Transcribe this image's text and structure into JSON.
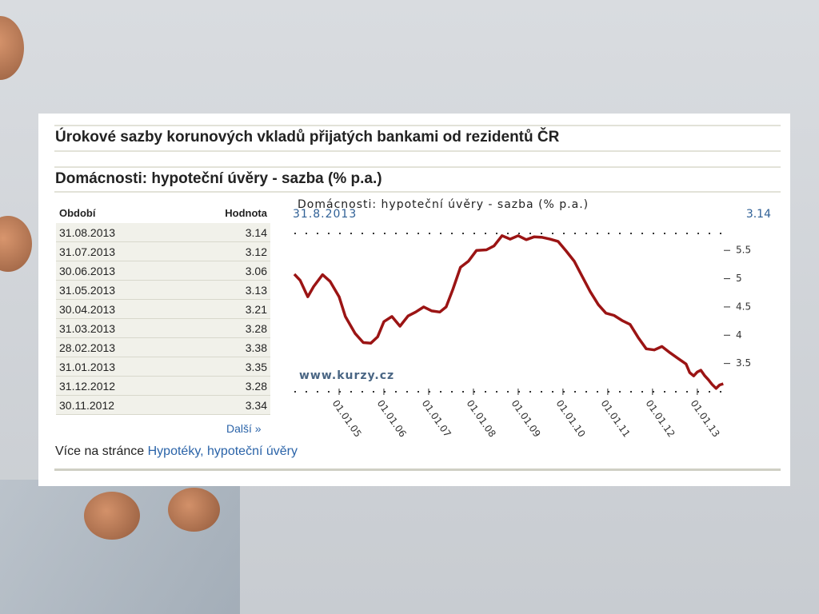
{
  "header": {
    "title": "Úrokové sazby korunových vkladů přijatých bankami od rezidentů ČR",
    "subtitle": "Domácnosti: hypoteční úvěry - sazba (% p.a.)"
  },
  "table": {
    "columns": [
      "Období",
      "Hodnota"
    ],
    "rows": [
      [
        "31.08.2013",
        3.14
      ],
      [
        "31.07.2013",
        3.12
      ],
      [
        "30.06.2013",
        3.06
      ],
      [
        "31.05.2013",
        3.13
      ],
      [
        "30.04.2013",
        3.21
      ],
      [
        "31.03.2013",
        3.28
      ],
      [
        "28.02.2013",
        3.38
      ],
      [
        "31.01.2013",
        3.35
      ],
      [
        "31.12.2012",
        3.28
      ],
      [
        "30.11.2012",
        3.34
      ]
    ]
  },
  "more_link": "Další »",
  "footer": {
    "text": "Více na stránce",
    "link": "Hypotéky, hypoteční úvěry"
  },
  "chart_data": {
    "type": "line",
    "title": "Domácnosti: hypoteční úvěry - sazba (% p.a.)",
    "annotations": [
      "31.8.2013",
      "3.14",
      "www.kurzy.cz"
    ],
    "x": [
      2004.0,
      2004.13,
      2004.3,
      2004.43,
      2004.63,
      2004.8,
      2005.0,
      2005.14,
      2005.36,
      2005.54,
      2005.71,
      2005.86,
      2006.0,
      2006.18,
      2006.36,
      2006.54,
      2006.71,
      2006.89,
      2007.07,
      2007.25,
      2007.39,
      2007.54,
      2007.71,
      2007.89,
      2008.07,
      2008.29,
      2008.46,
      2008.64,
      2008.82,
      2009.0,
      2009.18,
      2009.36,
      2009.54,
      2009.71,
      2009.89,
      2010.07,
      2010.25,
      2010.43,
      2010.61,
      2010.79,
      2010.96,
      2011.14,
      2011.32,
      2011.5,
      2011.68,
      2011.86,
      2012.04,
      2012.21,
      2012.39,
      2012.57,
      2012.75,
      2012.83,
      2012.92,
      2013.0,
      2013.08,
      2013.17,
      2013.25,
      2013.33,
      2013.42,
      2013.5,
      2013.58
    ],
    "series": [
      {
        "name": "Domácnosti: hypoteční úvěry - sazba (% p.a.)",
        "color": "#9b1414",
        "values": [
          5.08,
          4.97,
          4.68,
          4.86,
          5.07,
          4.95,
          4.68,
          4.33,
          4.03,
          3.87,
          3.86,
          3.97,
          4.24,
          4.33,
          4.16,
          4.34,
          4.41,
          4.5,
          4.43,
          4.41,
          4.5,
          4.81,
          5.2,
          5.31,
          5.5,
          5.51,
          5.58,
          5.76,
          5.7,
          5.76,
          5.69,
          5.74,
          5.73,
          5.7,
          5.66,
          5.49,
          5.31,
          5.04,
          4.77,
          4.54,
          4.39,
          4.35,
          4.26,
          4.19,
          3.96,
          3.76,
          3.74,
          3.8,
          3.69,
          3.59,
          3.49,
          3.34,
          3.28,
          3.35,
          3.38,
          3.28,
          3.21,
          3.13,
          3.06,
          3.12,
          3.14
        ]
      }
    ],
    "xlim": [
      2004.0,
      2013.7
    ],
    "xticks": [
      {
        "value": 2005,
        "label": "01.01.05"
      },
      {
        "value": 2006,
        "label": "01.01.06"
      },
      {
        "value": 2007,
        "label": "01.01.07"
      },
      {
        "value": 2008,
        "label": "01.01.08"
      },
      {
        "value": 2009,
        "label": "01.01.09"
      },
      {
        "value": 2010,
        "label": "01.01.10"
      },
      {
        "value": 2011,
        "label": "01.01.11"
      },
      {
        "value": 2012,
        "label": "01.01.12"
      },
      {
        "value": 2013,
        "label": "01.01.13"
      }
    ],
    "ylim": [
      3.0,
      5.8
    ],
    "yticks": [
      3.5,
      4,
      4.5,
      5,
      5.5
    ],
    "grid": false
  }
}
